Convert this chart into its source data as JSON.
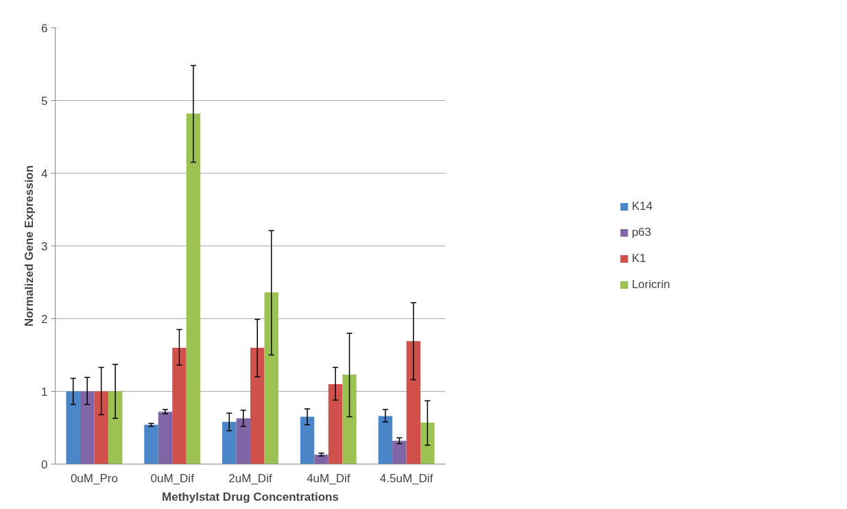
{
  "chart_data": {
    "type": "bar",
    "xlabel": "Methylstat Drug Concentrations",
    "ylabel": "Normalized Gene Expression",
    "categories": [
      "0uM_Pro",
      "0uM_Dif",
      "2uM_Dif",
      "4uM_Dif",
      "4.5uM_Dif"
    ],
    "series": [
      {
        "name": "K14",
        "color": "#4a86c8",
        "values": [
          1.0,
          0.54,
          0.58,
          0.65,
          0.66
        ],
        "errors": [
          [
            0.82,
            1.18
          ],
          [
            0.52,
            0.56
          ],
          [
            0.46,
            0.7
          ],
          [
            0.54,
            0.76
          ],
          [
            0.58,
            0.75
          ]
        ]
      },
      {
        "name": "p63",
        "color": "#8066a6",
        "values": [
          1.0,
          0.72,
          0.63,
          0.13,
          0.32
        ],
        "errors": [
          [
            0.82,
            1.19
          ],
          [
            0.69,
            0.75
          ],
          [
            0.52,
            0.74
          ],
          [
            0.11,
            0.15
          ],
          [
            0.28,
            0.36
          ]
        ]
      },
      {
        "name": "K1",
        "color": "#d0504c",
        "values": [
          1.0,
          1.6,
          1.6,
          1.1,
          1.69
        ],
        "errors": [
          [
            0.68,
            1.33
          ],
          [
            1.36,
            1.85
          ],
          [
            1.2,
            1.99
          ],
          [
            0.88,
            1.33
          ],
          [
            1.16,
            2.22
          ]
        ]
      },
      {
        "name": "Loricrin",
        "color": "#9cc253",
        "values": [
          1.0,
          4.82,
          2.36,
          1.23,
          0.57
        ],
        "errors": [
          [
            0.63,
            1.37
          ],
          [
            4.15,
            5.48
          ],
          [
            1.5,
            3.21
          ],
          [
            0.65,
            1.8
          ],
          [
            0.26,
            0.87
          ]
        ]
      }
    ],
    "ylim": [
      0,
      6
    ],
    "yticks": [
      0,
      1,
      2,
      3,
      4,
      5,
      6
    ],
    "grid": "y",
    "legend": "right"
  }
}
